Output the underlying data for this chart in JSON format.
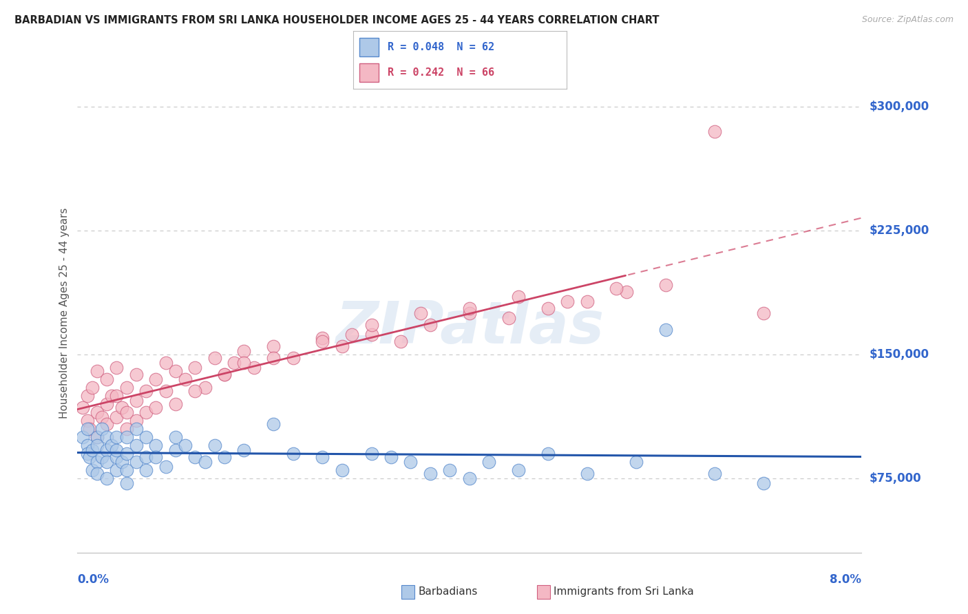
{
  "title": "BARBADIAN VS IMMIGRANTS FROM SRI LANKA HOUSEHOLDER INCOME AGES 25 - 44 YEARS CORRELATION CHART",
  "source": "Source: ZipAtlas.com",
  "ylabel": "Householder Income Ages 25 - 44 years",
  "ytick_values": [
    75000,
    150000,
    225000,
    300000
  ],
  "ymin": 30000,
  "ymax": 320000,
  "xmin": 0.0,
  "xmax": 0.08,
  "legend_r1": "R = 0.048  N = 62",
  "legend_r2": "R = 0.242  N = 66",
  "blue_fill": "#aec9e8",
  "blue_edge": "#5588cc",
  "pink_fill": "#f4b8c4",
  "pink_edge": "#d06080",
  "blue_line": "#2255aa",
  "pink_line": "#cc4466",
  "watermark": "ZIPatlas",
  "bg_color": "#ffffff",
  "grid_color": "#cccccc",
  "title_color": "#222222",
  "tick_label_color": "#3366cc",
  "barbadian_x": [
    0.0005,
    0.001,
    0.001,
    0.001,
    0.0012,
    0.0015,
    0.0015,
    0.002,
    0.002,
    0.002,
    0.002,
    0.0025,
    0.0025,
    0.003,
    0.003,
    0.003,
    0.003,
    0.0035,
    0.004,
    0.004,
    0.004,
    0.004,
    0.0045,
    0.005,
    0.005,
    0.005,
    0.005,
    0.006,
    0.006,
    0.006,
    0.007,
    0.007,
    0.007,
    0.008,
    0.008,
    0.009,
    0.01,
    0.01,
    0.011,
    0.012,
    0.013,
    0.014,
    0.015,
    0.017,
    0.02,
    0.022,
    0.025,
    0.027,
    0.03,
    0.032,
    0.034,
    0.036,
    0.038,
    0.04,
    0.042,
    0.045,
    0.048,
    0.052,
    0.057,
    0.06,
    0.065,
    0.07
  ],
  "barbadian_y": [
    100000,
    95000,
    90000,
    105000,
    88000,
    92000,
    80000,
    100000,
    85000,
    95000,
    78000,
    105000,
    88000,
    92000,
    100000,
    85000,
    75000,
    95000,
    88000,
    100000,
    80000,
    92000,
    85000,
    100000,
    90000,
    80000,
    72000,
    105000,
    95000,
    85000,
    88000,
    100000,
    80000,
    95000,
    88000,
    82000,
    100000,
    92000,
    95000,
    88000,
    85000,
    95000,
    88000,
    92000,
    108000,
    90000,
    88000,
    80000,
    90000,
    88000,
    85000,
    78000,
    80000,
    75000,
    85000,
    80000,
    90000,
    78000,
    85000,
    165000,
    78000,
    72000
  ],
  "srilanka_x": [
    0.0005,
    0.001,
    0.001,
    0.0012,
    0.0015,
    0.002,
    0.002,
    0.002,
    0.0025,
    0.003,
    0.003,
    0.003,
    0.0035,
    0.004,
    0.004,
    0.004,
    0.0045,
    0.005,
    0.005,
    0.005,
    0.006,
    0.006,
    0.006,
    0.007,
    0.007,
    0.008,
    0.008,
    0.009,
    0.009,
    0.01,
    0.011,
    0.012,
    0.013,
    0.014,
    0.015,
    0.016,
    0.017,
    0.018,
    0.02,
    0.022,
    0.025,
    0.027,
    0.03,
    0.033,
    0.036,
    0.04,
    0.044,
    0.048,
    0.052,
    0.056,
    0.01,
    0.012,
    0.015,
    0.017,
    0.02,
    0.025,
    0.028,
    0.03,
    0.035,
    0.04,
    0.045,
    0.05,
    0.055,
    0.06,
    0.065,
    0.07
  ],
  "srilanka_y": [
    118000,
    110000,
    125000,
    105000,
    130000,
    115000,
    100000,
    140000,
    112000,
    120000,
    135000,
    108000,
    125000,
    142000,
    112000,
    125000,
    118000,
    130000,
    115000,
    105000,
    122000,
    138000,
    110000,
    128000,
    115000,
    135000,
    118000,
    145000,
    128000,
    140000,
    135000,
    142000,
    130000,
    148000,
    138000,
    145000,
    152000,
    142000,
    155000,
    148000,
    160000,
    155000,
    162000,
    158000,
    168000,
    175000,
    172000,
    178000,
    182000,
    188000,
    120000,
    128000,
    138000,
    145000,
    148000,
    158000,
    162000,
    168000,
    175000,
    178000,
    185000,
    182000,
    190000,
    192000,
    285000,
    175000
  ]
}
